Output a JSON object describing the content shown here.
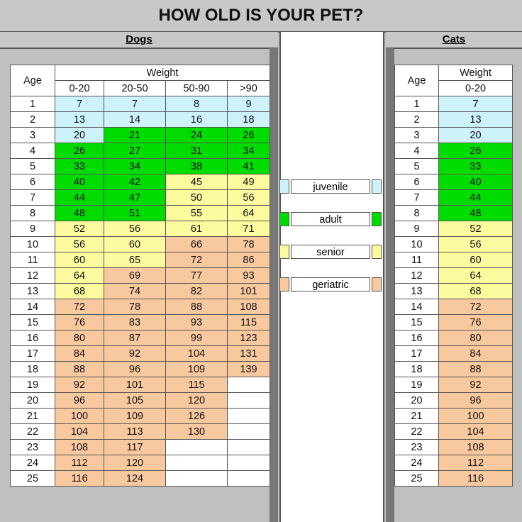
{
  "title": "HOW OLD IS YOUR PET?",
  "colors": {
    "juvenile": "#cdf2f9",
    "adult": "#00dc00",
    "senior": "#fbfa9f",
    "geriatric": "#f8c89f",
    "blank": "#ffffff"
  },
  "chart_data": {
    "type": "table",
    "title": "HOW OLD IS YOUR PET?",
    "dogs": {
      "label": "Dogs",
      "age_header": "Age",
      "weight_header": "Weight",
      "weight_classes": [
        "0-20",
        "20-50",
        "50-90",
        ">90"
      ],
      "rows": [
        {
          "age": "1",
          "values": [
            "7",
            "7",
            "8",
            "9"
          ],
          "stages": [
            "juvenile",
            "juvenile",
            "juvenile",
            "juvenile"
          ]
        },
        {
          "age": "2",
          "values": [
            "13",
            "14",
            "16",
            "18"
          ],
          "stages": [
            "juvenile",
            "juvenile",
            "juvenile",
            "juvenile"
          ]
        },
        {
          "age": "3",
          "values": [
            "20",
            "21",
            "24",
            "26"
          ],
          "stages": [
            "juvenile",
            "adult",
            "adult",
            "adult"
          ]
        },
        {
          "age": "4",
          "values": [
            "26",
            "27",
            "31",
            "34"
          ],
          "stages": [
            "adult",
            "adult",
            "adult",
            "adult"
          ]
        },
        {
          "age": "5",
          "values": [
            "33",
            "34",
            "38",
            "41"
          ],
          "stages": [
            "adult",
            "adult",
            "adult",
            "adult"
          ]
        },
        {
          "age": "6",
          "values": [
            "40",
            "42",
            "45",
            "49"
          ],
          "stages": [
            "adult",
            "adult",
            "senior",
            "senior"
          ]
        },
        {
          "age": "7",
          "values": [
            "44",
            "47",
            "50",
            "56"
          ],
          "stages": [
            "adult",
            "adult",
            "senior",
            "senior"
          ]
        },
        {
          "age": "8",
          "values": [
            "48",
            "51",
            "55",
            "64"
          ],
          "stages": [
            "adult",
            "adult",
            "senior",
            "senior"
          ]
        },
        {
          "age": "9",
          "values": [
            "52",
            "56",
            "61",
            "71"
          ],
          "stages": [
            "senior",
            "senior",
            "senior",
            "senior"
          ]
        },
        {
          "age": "10",
          "values": [
            "56",
            "60",
            "66",
            "78"
          ],
          "stages": [
            "senior",
            "senior",
            "geriatric",
            "geriatric"
          ]
        },
        {
          "age": "11",
          "values": [
            "60",
            "65",
            "72",
            "86"
          ],
          "stages": [
            "senior",
            "senior",
            "geriatric",
            "geriatric"
          ]
        },
        {
          "age": "12",
          "values": [
            "64",
            "69",
            "77",
            "93"
          ],
          "stages": [
            "senior",
            "geriatric",
            "geriatric",
            "geriatric"
          ]
        },
        {
          "age": "13",
          "values": [
            "68",
            "74",
            "82",
            "101"
          ],
          "stages": [
            "senior",
            "geriatric",
            "geriatric",
            "geriatric"
          ]
        },
        {
          "age": "14",
          "values": [
            "72",
            "78",
            "88",
            "108"
          ],
          "stages": [
            "geriatric",
            "geriatric",
            "geriatric",
            "geriatric"
          ]
        },
        {
          "age": "15",
          "values": [
            "76",
            "83",
            "93",
            "115"
          ],
          "stages": [
            "geriatric",
            "geriatric",
            "geriatric",
            "geriatric"
          ]
        },
        {
          "age": "16",
          "values": [
            "80",
            "87",
            "99",
            "123"
          ],
          "stages": [
            "geriatric",
            "geriatric",
            "geriatric",
            "geriatric"
          ]
        },
        {
          "age": "17",
          "values": [
            "84",
            "92",
            "104",
            "131"
          ],
          "stages": [
            "geriatric",
            "geriatric",
            "geriatric",
            "geriatric"
          ]
        },
        {
          "age": "18",
          "values": [
            "88",
            "96",
            "109",
            "139"
          ],
          "stages": [
            "geriatric",
            "geriatric",
            "geriatric",
            "geriatric"
          ]
        },
        {
          "age": "19",
          "values": [
            "92",
            "101",
            "115",
            ""
          ],
          "stages": [
            "geriatric",
            "geriatric",
            "geriatric",
            "blank"
          ]
        },
        {
          "age": "20",
          "values": [
            "96",
            "105",
            "120",
            ""
          ],
          "stages": [
            "geriatric",
            "geriatric",
            "geriatric",
            "blank"
          ]
        },
        {
          "age": "21",
          "values": [
            "100",
            "109",
            "126",
            ""
          ],
          "stages": [
            "geriatric",
            "geriatric",
            "geriatric",
            "blank"
          ]
        },
        {
          "age": "22",
          "values": [
            "104",
            "113",
            "130",
            ""
          ],
          "stages": [
            "geriatric",
            "geriatric",
            "geriatric",
            "blank"
          ]
        },
        {
          "age": "23",
          "values": [
            "108",
            "117",
            "",
            ""
          ],
          "stages": [
            "geriatric",
            "geriatric",
            "blank",
            "blank"
          ]
        },
        {
          "age": "24",
          "values": [
            "112",
            "120",
            "",
            ""
          ],
          "stages": [
            "geriatric",
            "geriatric",
            "blank",
            "blank"
          ]
        },
        {
          "age": "25",
          "values": [
            "116",
            "124",
            "",
            ""
          ],
          "stages": [
            "geriatric",
            "geriatric",
            "blank",
            "blank"
          ]
        }
      ]
    },
    "cats": {
      "label": "Cats",
      "age_header": "Age",
      "weight_header": "Weight",
      "weight_classes": [
        "0-20"
      ],
      "rows": [
        {
          "age": "1",
          "values": [
            "7"
          ],
          "stages": [
            "juvenile"
          ]
        },
        {
          "age": "2",
          "values": [
            "13"
          ],
          "stages": [
            "juvenile"
          ]
        },
        {
          "age": "3",
          "values": [
            "20"
          ],
          "stages": [
            "juvenile"
          ]
        },
        {
          "age": "4",
          "values": [
            "26"
          ],
          "stages": [
            "adult"
          ]
        },
        {
          "age": "5",
          "values": [
            "33"
          ],
          "stages": [
            "adult"
          ]
        },
        {
          "age": "6",
          "values": [
            "40"
          ],
          "stages": [
            "adult"
          ]
        },
        {
          "age": "7",
          "values": [
            "44"
          ],
          "stages": [
            "adult"
          ]
        },
        {
          "age": "8",
          "values": [
            "48"
          ],
          "stages": [
            "adult"
          ]
        },
        {
          "age": "9",
          "values": [
            "52"
          ],
          "stages": [
            "senior"
          ]
        },
        {
          "age": "10",
          "values": [
            "56"
          ],
          "stages": [
            "senior"
          ]
        },
        {
          "age": "11",
          "values": [
            "60"
          ],
          "stages": [
            "senior"
          ]
        },
        {
          "age": "12",
          "values": [
            "64"
          ],
          "stages": [
            "senior"
          ]
        },
        {
          "age": "13",
          "values": [
            "68"
          ],
          "stages": [
            "senior"
          ]
        },
        {
          "age": "14",
          "values": [
            "72"
          ],
          "stages": [
            "geriatric"
          ]
        },
        {
          "age": "15",
          "values": [
            "76"
          ],
          "stages": [
            "geriatric"
          ]
        },
        {
          "age": "16",
          "values": [
            "80"
          ],
          "stages": [
            "geriatric"
          ]
        },
        {
          "age": "17",
          "values": [
            "84"
          ],
          "stages": [
            "geriatric"
          ]
        },
        {
          "age": "18",
          "values": [
            "88"
          ],
          "stages": [
            "geriatric"
          ]
        },
        {
          "age": "19",
          "values": [
            "92"
          ],
          "stages": [
            "geriatric"
          ]
        },
        {
          "age": "20",
          "values": [
            "96"
          ],
          "stages": [
            "geriatric"
          ]
        },
        {
          "age": "21",
          "values": [
            "100"
          ],
          "stages": [
            "geriatric"
          ]
        },
        {
          "age": "22",
          "values": [
            "104"
          ],
          "stages": [
            "geriatric"
          ]
        },
        {
          "age": "23",
          "values": [
            "108"
          ],
          "stages": [
            "geriatric"
          ]
        },
        {
          "age": "24",
          "values": [
            "112"
          ],
          "stages": [
            "geriatric"
          ]
        },
        {
          "age": "25",
          "values": [
            "116"
          ],
          "stages": [
            "geriatric"
          ]
        }
      ]
    },
    "legend": [
      {
        "label": "juvenile",
        "stage": "juvenile"
      },
      {
        "label": "adult",
        "stage": "adult"
      },
      {
        "label": "senior",
        "stage": "senior"
      },
      {
        "label": "geriatric",
        "stage": "geriatric"
      }
    ]
  }
}
